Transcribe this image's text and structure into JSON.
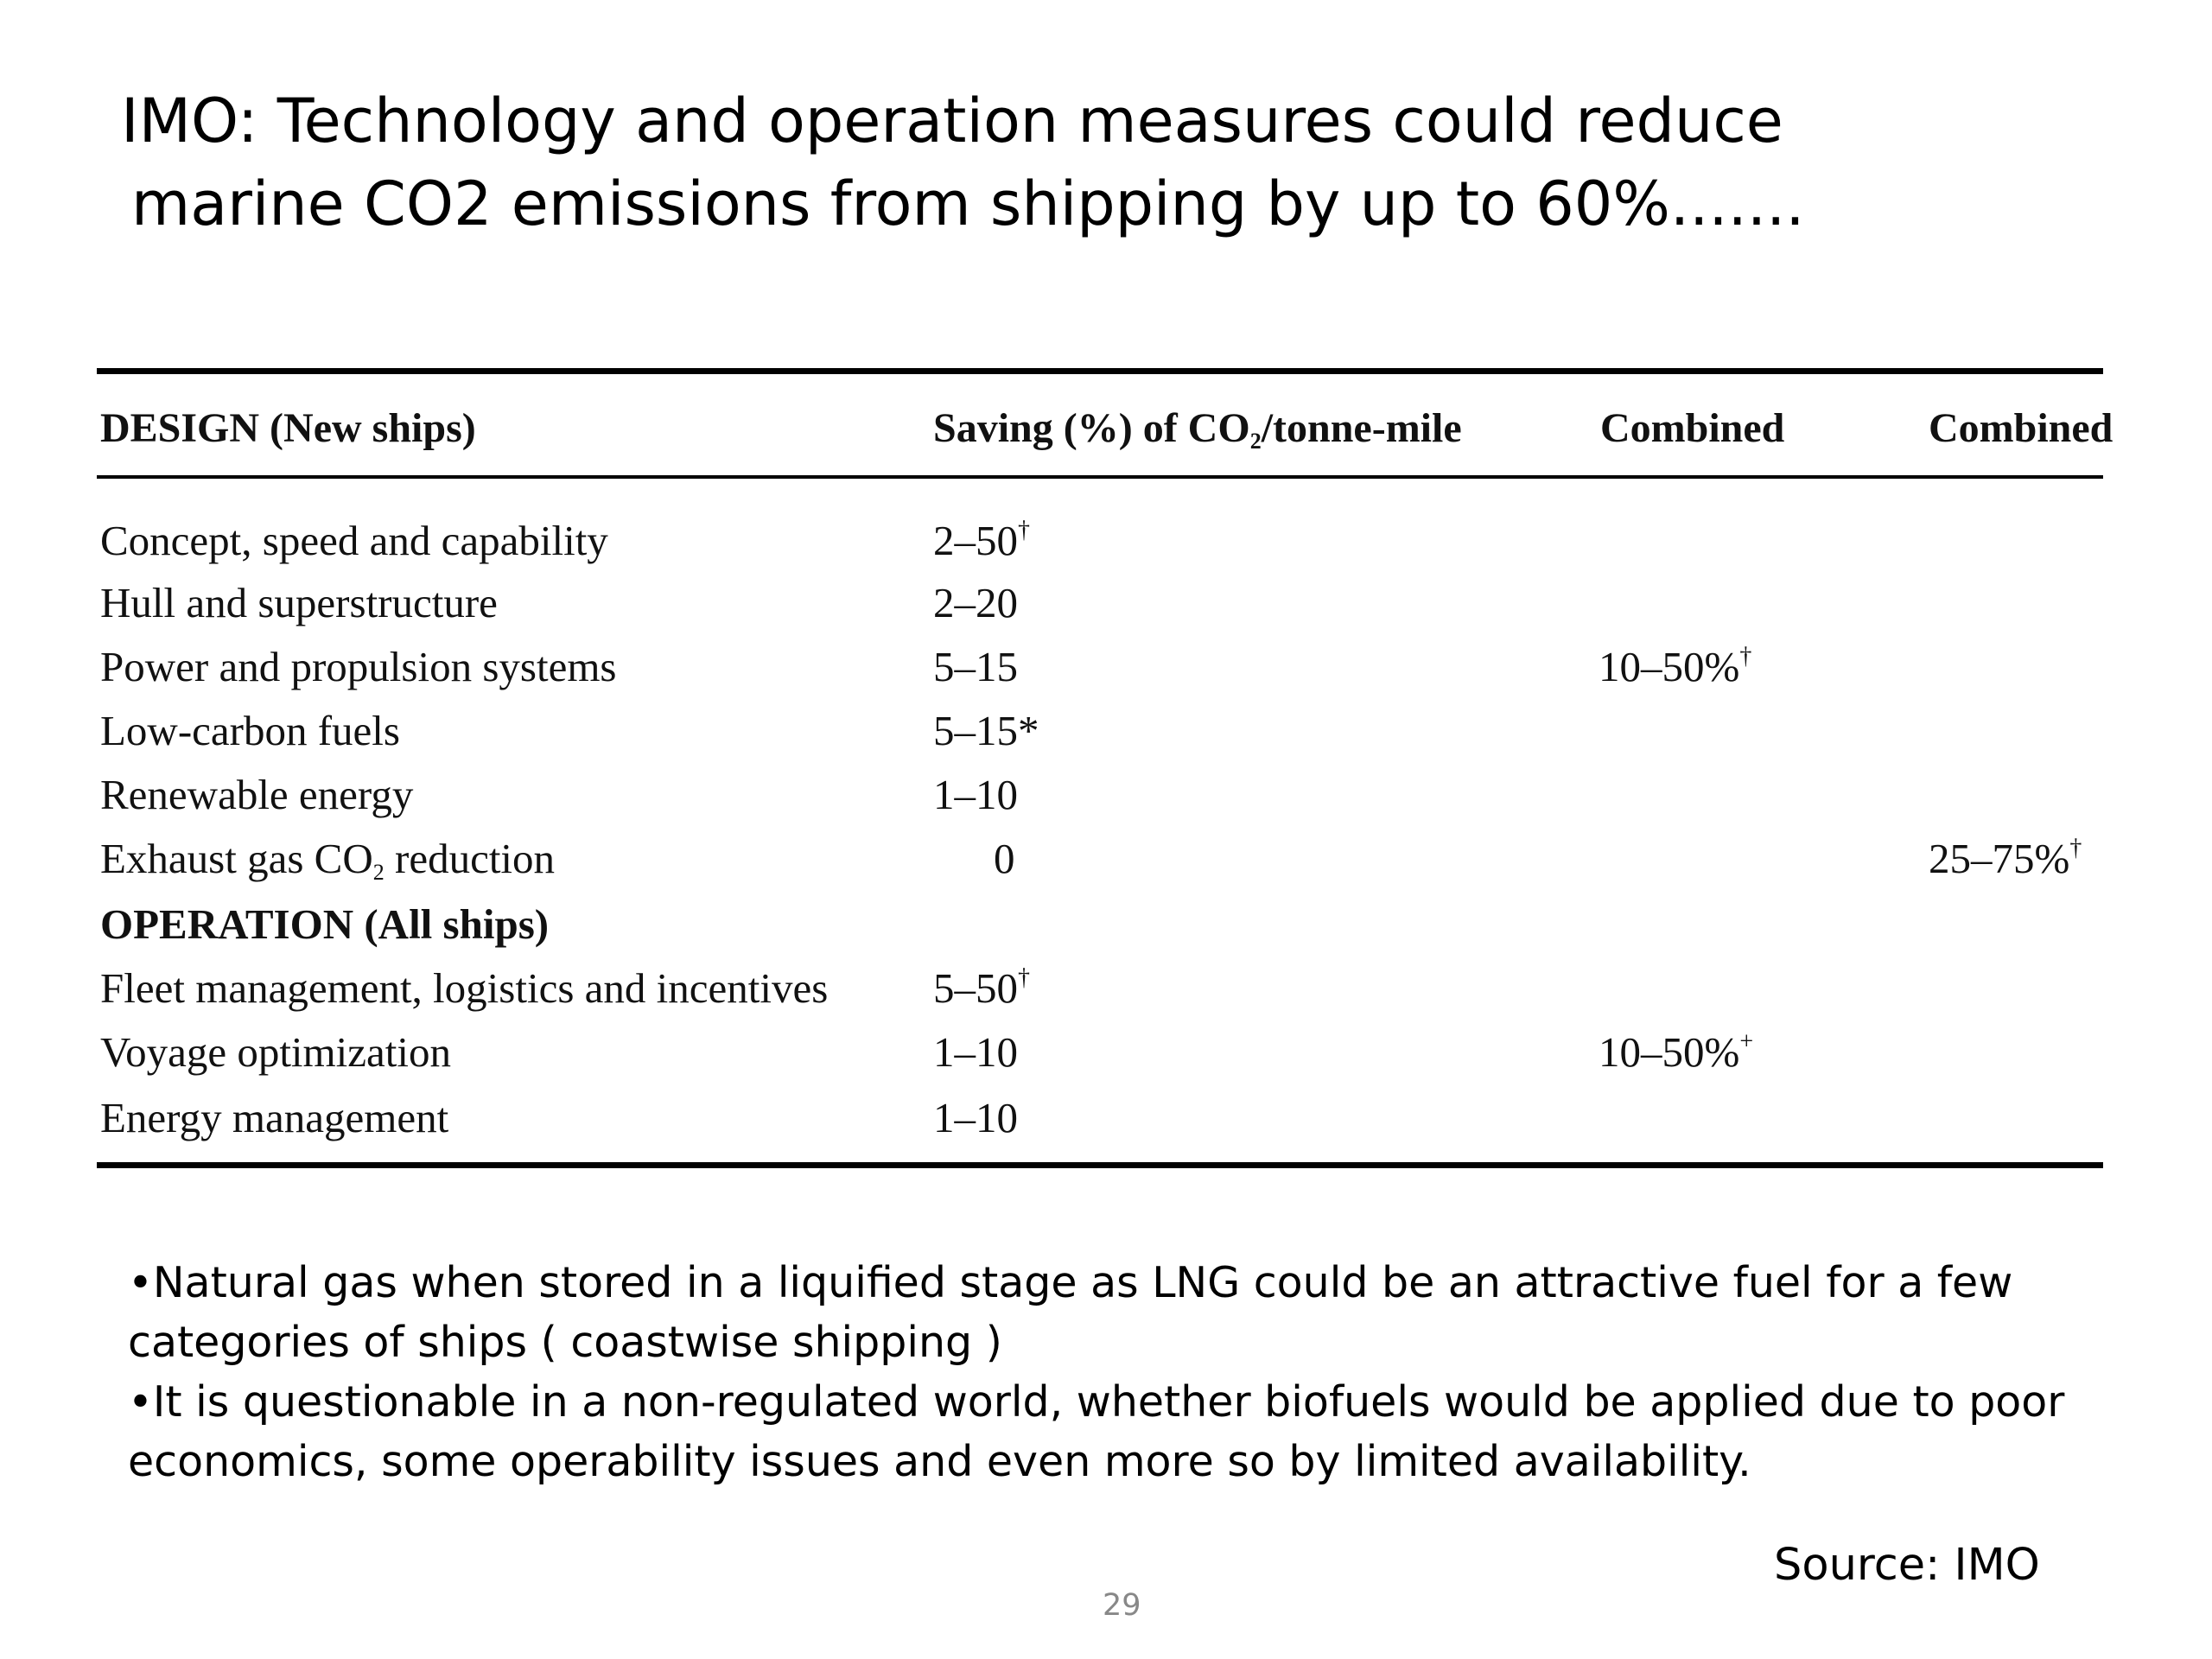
{
  "slide": {
    "title_line1": "IMO: Technology and operation measures could reduce",
    "title_line2": "marine CO2 emissions from shipping by up to 60%.......",
    "page_number": "29",
    "source": "Source: IMO"
  },
  "table": {
    "headers": {
      "design": "DESIGN (New ships)",
      "saving_prefix": "Saving (%) of CO",
      "saving_sub": "2",
      "saving_suffix": "/tonne-mile",
      "combined1": "Combined",
      "combined2": "Combined"
    },
    "rows": [
      {
        "label": "Concept, speed and capability",
        "saving": "2–50",
        "saving_mark": "†"
      },
      {
        "label": "Hull and superstructure",
        "saving": "2–20"
      },
      {
        "label": "Power and propulsion systems",
        "saving": "5–15",
        "combined": "10–50%",
        "combined_mark": "†"
      },
      {
        "label": "Low-carbon fuels",
        "saving": "5–15*"
      },
      {
        "label": "Renewable energy",
        "saving": "1–10"
      },
      {
        "label_prefix": "Exhaust gas CO",
        "label_sub": "2",
        "label_suffix": " reduction",
        "saving": "0",
        "combined_total": "25–75%",
        "combined_total_mark": "†"
      },
      {
        "section": "OPERATION (All ships)"
      },
      {
        "label": "Fleet management, logistics and incentives",
        "saving": "5–50",
        "saving_mark": "†"
      },
      {
        "label": "Voyage optimization",
        "saving": "1–10",
        "combined": "10–50%",
        "combined_mark": "+"
      },
      {
        "label": "Energy management",
        "saving": "1–10"
      }
    ]
  },
  "notes": [
    "•Natural gas when stored in a liquified stage as LNG could be an attractive fuel for a few categories of ships ( coastwise shipping )",
    "•It is questionable in a non-regulated world, whether biofuels would be applied due to poor economics, some operability issues and even more so by limited availability."
  ]
}
